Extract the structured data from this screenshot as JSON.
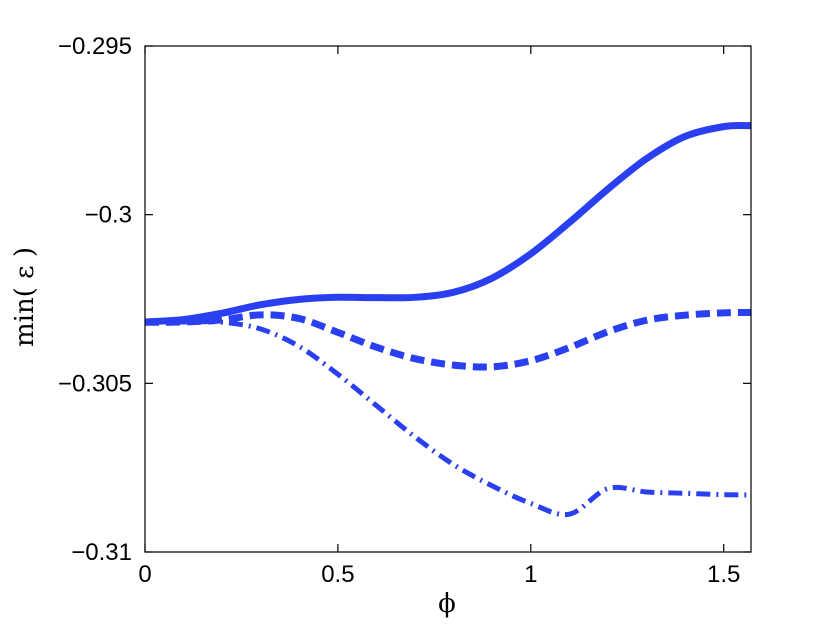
{
  "chart_data": {
    "type": "line",
    "title": "",
    "xlabel": "ϕ",
    "ylabel": "min( ε )",
    "xlim": [
      0,
      1.5708
    ],
    "ylim": [
      -0.31,
      -0.295
    ],
    "xticks": [
      0,
      0.5,
      1,
      1.5
    ],
    "xtick_labels": [
      "0",
      "0.5",
      "1",
      "1.5"
    ],
    "yticks": [
      -0.31,
      -0.305,
      -0.3,
      -0.295
    ],
    "ytick_labels": [
      "−0.31",
      "−0.305",
      "−0.3",
      "−0.295"
    ],
    "grid": false,
    "color": "#2a40f0",
    "series": [
      {
        "style": "solid",
        "x": [
          0,
          0.1,
          0.2,
          0.3,
          0.4,
          0.5,
          0.6,
          0.7,
          0.8,
          0.9,
          1.0,
          1.1,
          1.2,
          1.3,
          1.4,
          1.5,
          1.5708
        ],
        "values": [
          -0.30318,
          -0.30311,
          -0.30292,
          -0.30267,
          -0.30251,
          -0.30245,
          -0.30246,
          -0.30245,
          -0.3023,
          -0.30188,
          -0.30116,
          -0.30023,
          -0.29924,
          -0.29834,
          -0.29768,
          -0.29739,
          -0.29736
        ]
      },
      {
        "style": "dashed",
        "x": [
          0,
          0.1,
          0.2,
          0.3,
          0.4,
          0.5,
          0.6,
          0.7,
          0.8,
          0.9,
          1.0,
          1.1,
          1.2,
          1.3,
          1.4,
          1.5,
          1.5708
        ],
        "values": [
          -0.30319,
          -0.30318,
          -0.30312,
          -0.30297,
          -0.30308,
          -0.30349,
          -0.30393,
          -0.30427,
          -0.30446,
          -0.30451,
          -0.30433,
          -0.30394,
          -0.30347,
          -0.30313,
          -0.30298,
          -0.30291,
          -0.3029
        ]
      },
      {
        "style": "dashdot",
        "x": [
          0,
          0.1,
          0.2,
          0.3,
          0.4,
          0.5,
          0.6,
          0.7,
          0.8,
          0.9,
          1.0,
          1.1,
          1.2,
          1.3,
          1.4,
          1.5,
          1.5708
        ],
        "values": [
          -0.30319,
          -0.30318,
          -0.30319,
          -0.30339,
          -0.30391,
          -0.30473,
          -0.30566,
          -0.30659,
          -0.30741,
          -0.30804,
          -0.30856,
          -0.30888,
          -0.30812,
          -0.30822,
          -0.30826,
          -0.3083,
          -0.30831
        ]
      }
    ]
  }
}
